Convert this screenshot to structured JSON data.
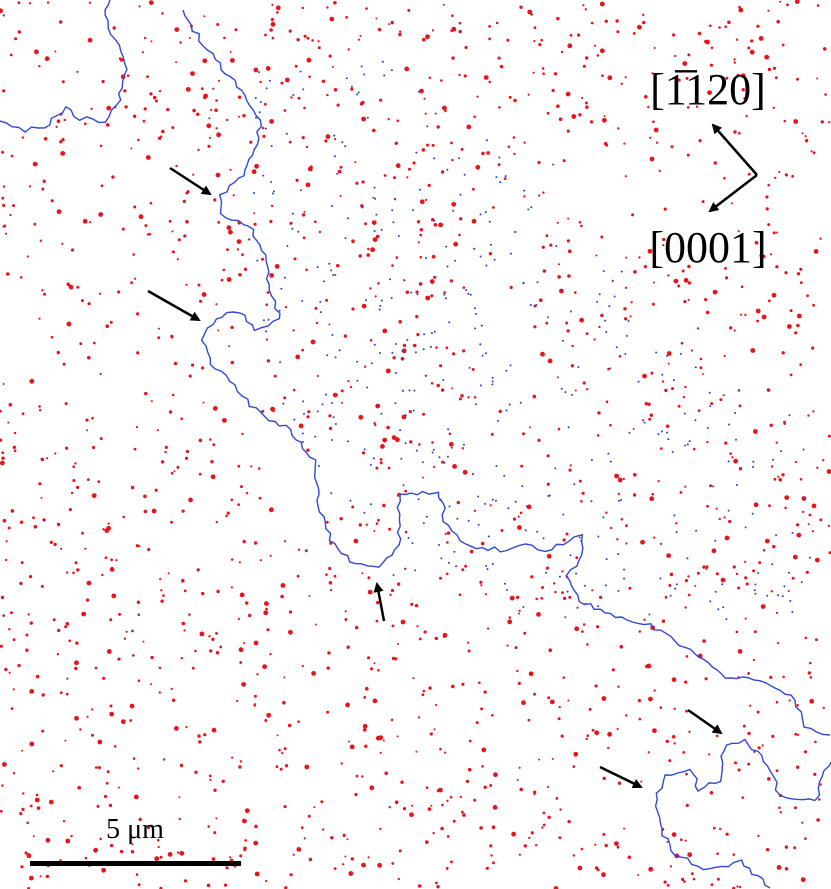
{
  "orientation": {
    "top_label": "[1̅120]",
    "bottom_label": "[0001]"
  },
  "scale_bar": {
    "label": "5 μm"
  }
}
